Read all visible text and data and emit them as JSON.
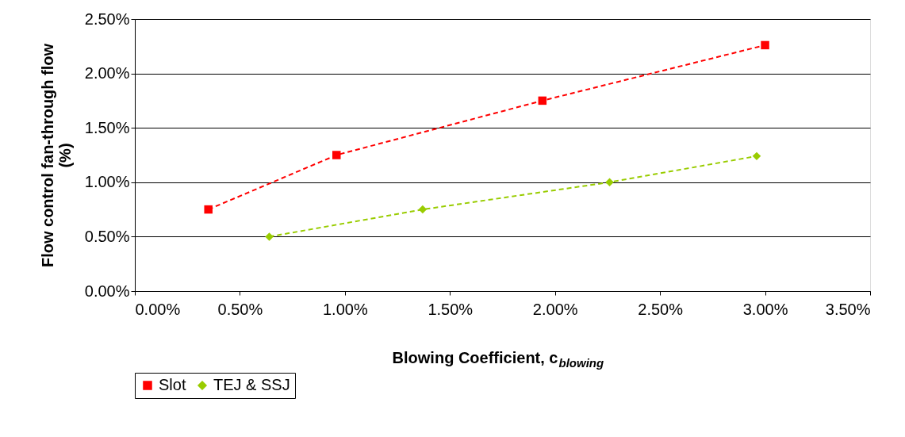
{
  "chart_data": {
    "type": "line",
    "xlabel": "Blowing Coefficient, c$_{blowing}$",
    "ylabel": "Flow control fan-through flow\n(%)",
    "series": [
      {
        "name": "Slot",
        "color": "#ff0000",
        "marker": "square",
        "x": [
          0.35,
          0.96,
          1.94,
          3.0
        ],
        "values": [
          0.75,
          1.25,
          1.75,
          2.26
        ]
      },
      {
        "name": "TEJ & SSJ",
        "color": "#99cc00",
        "marker": "diamond",
        "x": [
          0.64,
          1.37,
          2.26,
          2.96
        ],
        "values": [
          0.5,
          0.75,
          1.0,
          1.24
        ]
      }
    ],
    "line_style": "dashed",
    "grid": "y",
    "legend": "bottom",
    "xlim": [
      0,
      3.5
    ],
    "ylim": [
      0,
      2.5
    ],
    "xticks": [
      {
        "value": 0,
        "label": "0.00%"
      },
      {
        "value": 0.5,
        "label": "0.50%"
      },
      {
        "value": 1,
        "label": "1.00%"
      },
      {
        "value": 1.5,
        "label": "1.50%"
      },
      {
        "value": 2,
        "label": "2.00%"
      },
      {
        "value": 2.5,
        "label": "2.50%"
      },
      {
        "value": 3,
        "label": "3.00%"
      },
      {
        "value": 3.5,
        "label": "3.50%"
      }
    ],
    "yticks": [
      {
        "value": 0,
        "label": "0.00%"
      },
      {
        "value": 0.5,
        "label": "0.50%"
      },
      {
        "value": 1,
        "label": "1.00%"
      },
      {
        "value": 1.5,
        "label": "1.50%"
      },
      {
        "value": 2,
        "label": "2.00%"
      },
      {
        "value": 2.5,
        "label": "2.50%"
      }
    ]
  }
}
